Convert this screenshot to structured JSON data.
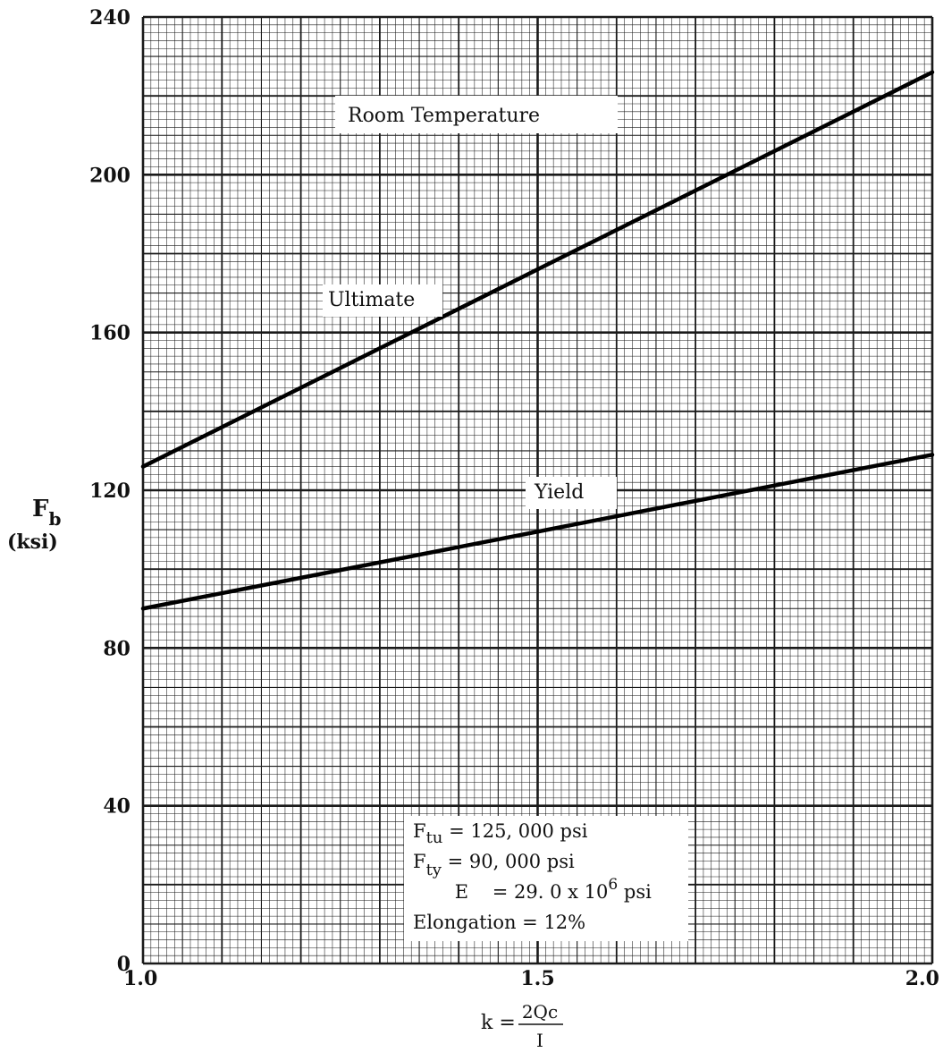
{
  "chart_data": {
    "type": "line",
    "xlim": [
      1.0,
      2.0
    ],
    "ylim": [
      0,
      240
    ],
    "grid": true,
    "x_ticks": [
      "1.0",
      "1.5",
      "2.0"
    ],
    "y_ticks": [
      "0",
      "40",
      "80",
      "120",
      "160",
      "200",
      "240"
    ],
    "xlabel": {
      "prefix": "k =",
      "numerator": "2Qc",
      "denominator": "I"
    },
    "ylabel": {
      "symbol": "F",
      "subscript": "b",
      "unit": "(ksi)"
    },
    "series": [
      {
        "name": "Ultimate",
        "x": [
          1.0,
          2.0
        ],
        "y": [
          126,
          226
        ]
      },
      {
        "name": "Yield",
        "x": [
          1.0,
          2.0
        ],
        "y": [
          90,
          129
        ]
      }
    ],
    "annotations": {
      "condition": "Room Temperature",
      "properties": {
        "ftu": {
          "symbol": "F",
          "sub": "tu",
          "value": " = 125, 000 psi"
        },
        "fty": {
          "symbol": "F",
          "sub": "ty",
          "value": " =   90, 000 psi"
        },
        "e": {
          "symbol": "E",
          "mid": "    = 29. 0 x 10",
          "sup": "6",
          "unit": " psi"
        },
        "elongation": "Elongation = 12%"
      }
    }
  }
}
